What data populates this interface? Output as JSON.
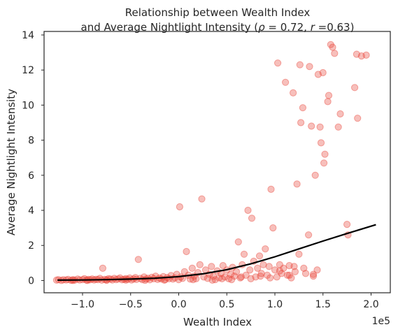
{
  "chart_data": {
    "type": "scatter",
    "title_line1": "Relationship between Wealth Index",
    "title_line2_prefix": "and Average Nightlight Intensity (",
    "rho_symbol": "ρ",
    "rho_text": " = 0.72, ",
    "r_symbol": "r",
    "r_text": " =0.63)",
    "xlabel": "Wealth Index",
    "ylabel": "Average Nightlight Intensity",
    "x_offset_label": "1e5",
    "xlim": [
      -1.4,
      2.2
    ],
    "ylim": [
      -0.7,
      14.2
    ],
    "xticks": [
      -1.0,
      -0.5,
      0.0,
      0.5,
      1.0,
      1.5,
      2.0
    ],
    "xtick_labels": [
      "−1.0",
      "−0.5",
      "0.0",
      "0.5",
      "1.0",
      "1.5",
      "2.0"
    ],
    "yticks": [
      0,
      2,
      4,
      6,
      8,
      10,
      12,
      14
    ],
    "ytick_labels": [
      "0",
      "2",
      "4",
      "6",
      "8",
      "10",
      "12",
      "14"
    ],
    "grid": false,
    "point_color": "#e8483c",
    "point_alpha": 0.35,
    "fit_color": "#000000",
    "fit_line": {
      "x": [
        -1.26,
        -1.0,
        -0.75,
        -0.5,
        -0.25,
        0.0,
        0.25,
        0.5,
        0.75,
        1.0,
        1.25,
        1.5,
        1.75,
        2.05
      ],
      "y": [
        0.02,
        0.03,
        0.05,
        0.08,
        0.13,
        0.22,
        0.38,
        0.62,
        0.95,
        1.35,
        1.8,
        2.25,
        2.68,
        3.18
      ]
    },
    "points": [
      [
        -1.27,
        0.02
      ],
      [
        -1.25,
        0.05
      ],
      [
        -1.22,
        0.0
      ],
      [
        -1.2,
        0.04
      ],
      [
        -1.17,
        0.03
      ],
      [
        -1.15,
        0.06
      ],
      [
        -1.12,
        0.01
      ],
      [
        -1.1,
        0.05
      ],
      [
        -1.08,
        0.02
      ],
      [
        -1.05,
        0.08
      ],
      [
        -1.03,
        0.03
      ],
      [
        -1.0,
        0.05
      ],
      [
        -0.98,
        0.1
      ],
      [
        -0.96,
        0.02
      ],
      [
        -0.94,
        0.06
      ],
      [
        -0.92,
        0.04
      ],
      [
        -0.9,
        0.09
      ],
      [
        -0.88,
        0.03
      ],
      [
        -0.86,
        0.07
      ],
      [
        -0.84,
        0.05
      ],
      [
        -0.82,
        0.12
      ],
      [
        -0.8,
        0.02
      ],
      [
        -0.79,
        0.7
      ],
      [
        -0.77,
        0.06
      ],
      [
        -0.75,
        0.04
      ],
      [
        -0.73,
        0.1
      ],
      [
        -0.71,
        0.08
      ],
      [
        -0.69,
        0.03
      ],
      [
        -0.67,
        0.12
      ],
      [
        -0.65,
        0.05
      ],
      [
        -0.63,
        0.09
      ],
      [
        -0.61,
        0.15
      ],
      [
        -0.59,
        0.04
      ],
      [
        -0.57,
        0.07
      ],
      [
        -0.55,
        0.11
      ],
      [
        -0.53,
        0.06
      ],
      [
        -0.51,
        0.14
      ],
      [
        -0.49,
        0.03
      ],
      [
        -0.47,
        0.09
      ],
      [
        -0.45,
        0.17
      ],
      [
        -0.44,
        0.06
      ],
      [
        -0.42,
        1.2
      ],
      [
        -0.4,
        0.12
      ],
      [
        -0.38,
        0.05
      ],
      [
        -0.36,
        0.2
      ],
      [
        -0.34,
        0.08
      ],
      [
        -0.32,
        0.13
      ],
      [
        -0.3,
        0.04
      ],
      [
        -0.28,
        0.18
      ],
      [
        -0.26,
        0.1
      ],
      [
        -0.24,
        0.25
      ],
      [
        -0.22,
        0.06
      ],
      [
        -0.2,
        0.14
      ],
      [
        -0.18,
        0.09
      ],
      [
        -0.16,
        0.22
      ],
      [
        -0.14,
        0.05
      ],
      [
        -0.12,
        0.17
      ],
      [
        -0.1,
        0.1
      ],
      [
        -0.08,
        0.28
      ],
      [
        -0.06,
        0.08
      ],
      [
        -0.04,
        0.15
      ],
      [
        -0.02,
        0.35
      ],
      [
        0.0,
        0.05
      ],
      [
        0.01,
        4.2
      ],
      [
        0.02,
        0.2
      ],
      [
        0.04,
        0.12
      ],
      [
        0.06,
        0.5
      ],
      [
        0.08,
        1.65
      ],
      [
        0.1,
        0.3
      ],
      [
        0.12,
        0.08
      ],
      [
        0.14,
        0.7
      ],
      [
        0.16,
        0.25
      ],
      [
        0.18,
        0.1
      ],
      [
        0.2,
        0.45
      ],
      [
        0.22,
        0.9
      ],
      [
        0.24,
        4.65
      ],
      [
        0.26,
        0.2
      ],
      [
        0.28,
        0.6
      ],
      [
        0.3,
        0.12
      ],
      [
        0.32,
        0.35
      ],
      [
        0.34,
        0.8
      ],
      [
        0.36,
        0.25
      ],
      [
        0.38,
        0.05
      ],
      [
        0.4,
        0.55
      ],
      [
        0.42,
        0.15
      ],
      [
        0.44,
        0.4
      ],
      [
        0.46,
        0.85
      ],
      [
        0.48,
        0.2
      ],
      [
        0.5,
        0.6
      ],
      [
        0.52,
        0.1
      ],
      [
        0.54,
        0.35
      ],
      [
        0.56,
        0.75
      ],
      [
        0.58,
        0.25
      ],
      [
        0.6,
        0.5
      ],
      [
        0.62,
        2.2
      ],
      [
        0.64,
        0.15
      ],
      [
        0.66,
        0.9
      ],
      [
        0.68,
        1.5
      ],
      [
        0.7,
        0.3
      ],
      [
        0.72,
        4.0
      ],
      [
        0.74,
        0.6
      ],
      [
        0.76,
        3.55
      ],
      [
        0.78,
        1.1
      ],
      [
        0.8,
        0.2
      ],
      [
        0.82,
        0.7
      ],
      [
        0.84,
        1.4
      ],
      [
        0.86,
        0.4
      ],
      [
        0.88,
        0.9
      ],
      [
        0.9,
        1.8
      ],
      [
        0.92,
        0.3
      ],
      [
        0.94,
        0.8
      ],
      [
        0.96,
        5.2
      ],
      [
        0.98,
        3.0
      ],
      [
        1.0,
        0.6
      ],
      [
        1.02,
        0.2
      ],
      [
        1.03,
        12.4
      ],
      [
        1.05,
        0.9
      ],
      [
        1.07,
        0.4
      ],
      [
        1.09,
        0.7
      ],
      [
        1.11,
        11.3
      ],
      [
        1.13,
        0.3
      ],
      [
        1.15,
        0.85
      ],
      [
        1.17,
        0.15
      ],
      [
        1.19,
        10.7
      ],
      [
        1.21,
        0.5
      ],
      [
        1.23,
        5.5
      ],
      [
        1.25,
        1.5
      ],
      [
        1.26,
        12.3
      ],
      [
        1.27,
        9.0
      ],
      [
        1.29,
        9.85
      ],
      [
        1.3,
        0.7
      ],
      [
        1.32,
        0.4
      ],
      [
        1.35,
        2.6
      ],
      [
        1.36,
        12.2
      ],
      [
        1.38,
        8.8
      ],
      [
        1.4,
        0.35
      ],
      [
        1.42,
        6.0
      ],
      [
        1.44,
        0.6
      ],
      [
        1.45,
        11.75
      ],
      [
        1.47,
        8.75
      ],
      [
        1.48,
        7.85
      ],
      [
        1.5,
        11.85
      ],
      [
        1.51,
        6.7
      ],
      [
        1.52,
        7.2
      ],
      [
        1.55,
        10.2
      ],
      [
        1.56,
        10.55
      ],
      [
        1.58,
        13.45
      ],
      [
        1.6,
        13.3
      ],
      [
        1.62,
        12.95
      ],
      [
        1.66,
        8.75
      ],
      [
        1.68,
        9.5
      ],
      [
        1.75,
        3.2
      ],
      [
        1.76,
        2.6
      ],
      [
        1.83,
        11.0
      ],
      [
        1.85,
        12.9
      ],
      [
        1.86,
        9.25
      ],
      [
        1.9,
        12.8
      ],
      [
        1.95,
        12.85
      ],
      [
        0.15,
        0.05
      ],
      [
        -0.15,
        0.02
      ],
      [
        0.35,
        0.02
      ],
      [
        0.55,
        0.05
      ],
      [
        0.75,
        0.1
      ],
      [
        0.95,
        0.15
      ],
      [
        1.15,
        0.3
      ],
      [
        -0.35,
        0.01
      ],
      [
        -0.55,
        0.02
      ],
      [
        -0.75,
        0.01
      ],
      [
        -0.95,
        0.0
      ],
      [
        -1.1,
        0.0
      ],
      [
        0.45,
        0.1
      ],
      [
        0.65,
        0.2
      ],
      [
        0.85,
        0.25
      ],
      [
        1.05,
        0.55
      ],
      [
        1.2,
        0.8
      ],
      [
        1.4,
        0.25
      ]
    ]
  }
}
